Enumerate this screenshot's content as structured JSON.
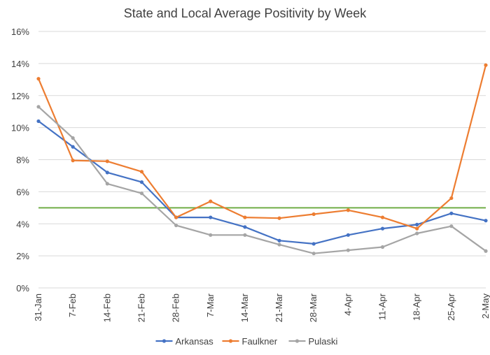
{
  "chart_data": {
    "type": "line",
    "title": "State and Local Average Positivity by Week",
    "xlabel": "",
    "ylabel": "",
    "categories": [
      "31-Jan",
      "7-Feb",
      "14-Feb",
      "21-Feb",
      "28-Feb",
      "7-Mar",
      "14-Mar",
      "21-Mar",
      "28-Mar",
      "4-Apr",
      "11-Apr",
      "18-Apr",
      "25-Apr",
      "2-May"
    ],
    "yticks": [
      "0%",
      "2%",
      "4%",
      "6%",
      "8%",
      "10%",
      "12%",
      "14%",
      "16%"
    ],
    "ylim": [
      0,
      16
    ],
    "grid": true,
    "legend_position": "bottom",
    "series": [
      {
        "name": "Arkansas",
        "color": "#4472c4",
        "values": [
          10.4,
          8.8,
          7.2,
          6.6,
          4.4,
          4.4,
          3.8,
          2.95,
          2.75,
          3.3,
          3.7,
          3.95,
          4.65,
          4.2
        ]
      },
      {
        "name": "Faulkner",
        "color": "#ed7d31",
        "values": [
          13.05,
          7.95,
          7.9,
          7.25,
          4.4,
          5.4,
          4.4,
          4.35,
          4.6,
          4.85,
          4.4,
          3.7,
          5.6,
          13.9
        ]
      },
      {
        "name": "Pulaski",
        "color": "#a5a5a5",
        "values": [
          11.3,
          9.35,
          6.5,
          5.9,
          3.9,
          3.3,
          3.3,
          2.7,
          2.15,
          2.35,
          2.55,
          3.4,
          3.85,
          2.3
        ]
      }
    ],
    "reference_line": {
      "value": 5,
      "color": "#70ad47"
    }
  }
}
